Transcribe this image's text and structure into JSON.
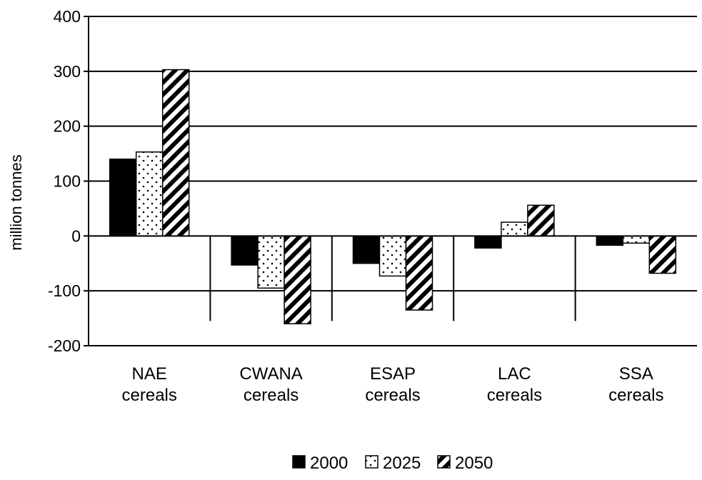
{
  "chart_data": {
    "type": "bar",
    "title": "",
    "xlabel": "",
    "ylabel": "million tonnes",
    "ylim": [
      -200,
      400
    ],
    "yticks": [
      400,
      300,
      200,
      100,
      0,
      -100,
      -200
    ],
    "grid": true,
    "legend_position": "bottom-center",
    "categories": [
      [
        "NAE",
        "cereals"
      ],
      [
        "CWANA",
        "cereals"
      ],
      [
        "ESAP",
        "cereals"
      ],
      [
        "LAC",
        "cereals"
      ],
      [
        "SSA",
        "cereals"
      ]
    ],
    "series": [
      {
        "name": "2000",
        "pattern": "solid",
        "values": [
          140,
          -53,
          -50,
          -22,
          -17
        ]
      },
      {
        "name": "2025",
        "pattern": "dots",
        "values": [
          153,
          -95,
          -73,
          25,
          -13
        ]
      },
      {
        "name": "2050",
        "pattern": "hatch",
        "values": [
          303,
          -160,
          -135,
          56,
          -68
        ]
      }
    ]
  },
  "colors": {
    "bar_fill": "#000000",
    "background": "#ffffff",
    "gridline": "#000000"
  }
}
